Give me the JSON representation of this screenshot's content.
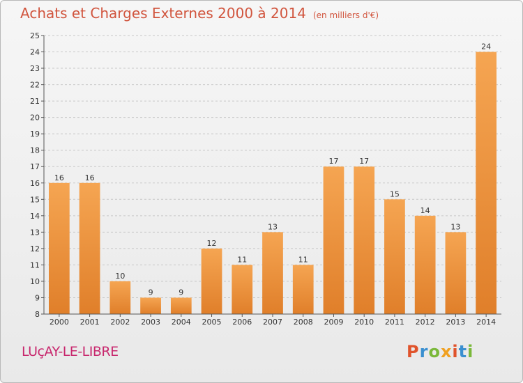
{
  "title": "Achats et Charges Externes 2000 à 2014",
  "unit": "(en milliers d'€)",
  "city": "LUçAY-LE-LIBRE",
  "logo": "Proxiti",
  "colors": {
    "title": "#d1553e",
    "city": "#c8286e",
    "bar_light": "#f5a552",
    "bar_dark": "#e07f2a",
    "grid": "#c8c8c8"
  },
  "chart_data": {
    "type": "bar",
    "title": "Achats et Charges Externes 2000 à 2014",
    "categories": [
      "2000",
      "2001",
      "2002",
      "2003",
      "2004",
      "2005",
      "2006",
      "2007",
      "2008",
      "2009",
      "2010",
      "2011",
      "2012",
      "2013",
      "2014"
    ],
    "values": [
      16,
      16,
      10,
      9,
      9,
      12,
      11,
      13,
      11,
      17,
      17,
      15,
      14,
      13,
      24
    ],
    "ylim": [
      8,
      25
    ],
    "yticks": [
      8,
      9,
      10,
      11,
      12,
      13,
      14,
      15,
      16,
      17,
      18,
      19,
      20,
      21,
      22,
      23,
      24,
      25
    ],
    "grid": true,
    "data_labels": true
  }
}
